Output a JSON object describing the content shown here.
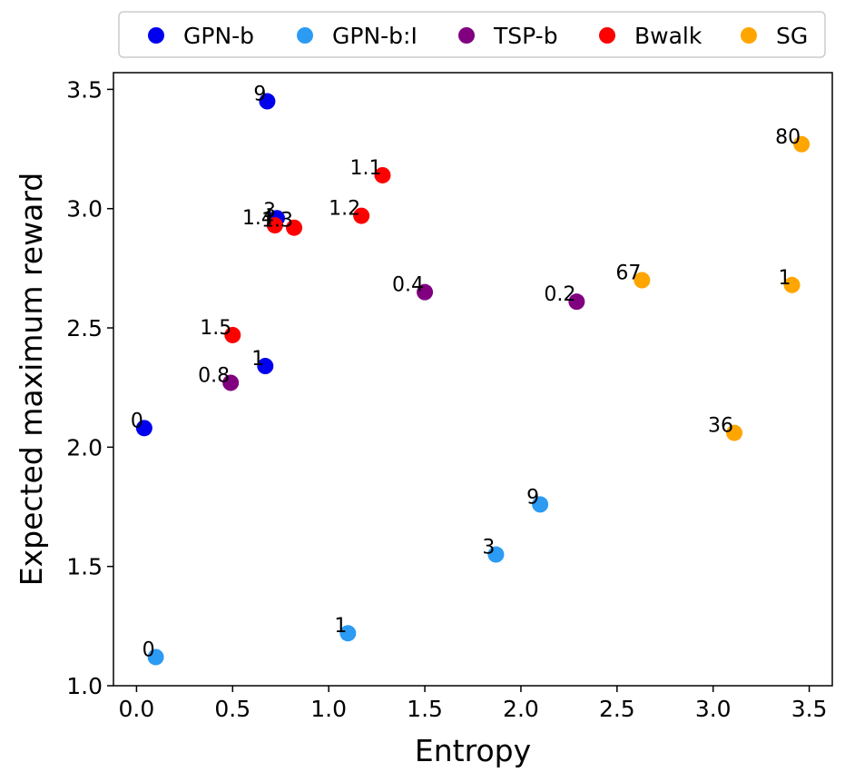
{
  "chart_data": {
    "type": "scatter",
    "title": "",
    "xlabel": "Entropy",
    "ylabel": "Expected maximum reward",
    "xlim": [
      -0.12,
      3.62
    ],
    "ylim": [
      1.0,
      3.57
    ],
    "xticks": [
      0.0,
      0.5,
      1.0,
      1.5,
      2.0,
      2.5,
      3.0,
      3.5
    ],
    "xtick_labels": [
      "0.0",
      "0.5",
      "1.0",
      "1.5",
      "2.0",
      "2.5",
      "3.0",
      "3.5"
    ],
    "yticks": [
      1.0,
      1.5,
      2.0,
      2.5,
      3.0,
      3.5
    ],
    "ytick_labels": [
      "1.0",
      "1.5",
      "2.0",
      "2.5",
      "3.0",
      "3.5"
    ],
    "grid": false,
    "legend_position": "top",
    "series": [
      {
        "name": "GPN-b",
        "color": "#0000ee",
        "points": [
          {
            "x": 0.04,
            "y": 2.08,
            "label": "0"
          },
          {
            "x": 0.67,
            "y": 2.34,
            "label": "1"
          },
          {
            "x": 0.73,
            "y": 2.96,
            "label": "3"
          },
          {
            "x": 0.68,
            "y": 3.45,
            "label": "9"
          }
        ]
      },
      {
        "name": "GPN-b:I",
        "color": "#2b9bf4",
        "points": [
          {
            "x": 0.1,
            "y": 1.12,
            "label": "0"
          },
          {
            "x": 1.1,
            "y": 1.22,
            "label": "1"
          },
          {
            "x": 1.87,
            "y": 1.55,
            "label": "3"
          },
          {
            "x": 2.1,
            "y": 1.76,
            "label": "9"
          }
        ]
      },
      {
        "name": "TSP-b",
        "color": "#800080",
        "points": [
          {
            "x": 0.49,
            "y": 2.27,
            "label": "0.8"
          },
          {
            "x": 1.5,
            "y": 2.65,
            "label": "0.4"
          },
          {
            "x": 2.29,
            "y": 2.61,
            "label": "0.2"
          }
        ]
      },
      {
        "name": "Bwalk",
        "color": "#ff0000",
        "points": [
          {
            "x": 0.5,
            "y": 2.47,
            "label": "1.5"
          },
          {
            "x": 0.72,
            "y": 2.93,
            "label": "1.4"
          },
          {
            "x": 0.82,
            "y": 2.92,
            "label": "1.3"
          },
          {
            "x": 1.17,
            "y": 2.97,
            "label": "1.2"
          },
          {
            "x": 1.28,
            "y": 3.14,
            "label": "1.1"
          }
        ]
      },
      {
        "name": "SG",
        "color": "#ffa500",
        "points": [
          {
            "x": 3.11,
            "y": 2.06,
            "label": "36"
          },
          {
            "x": 2.63,
            "y": 2.7,
            "label": "67"
          },
          {
            "x": 3.41,
            "y": 2.68,
            "label": "1"
          },
          {
            "x": 3.46,
            "y": 3.27,
            "label": "80"
          }
        ]
      }
    ]
  }
}
